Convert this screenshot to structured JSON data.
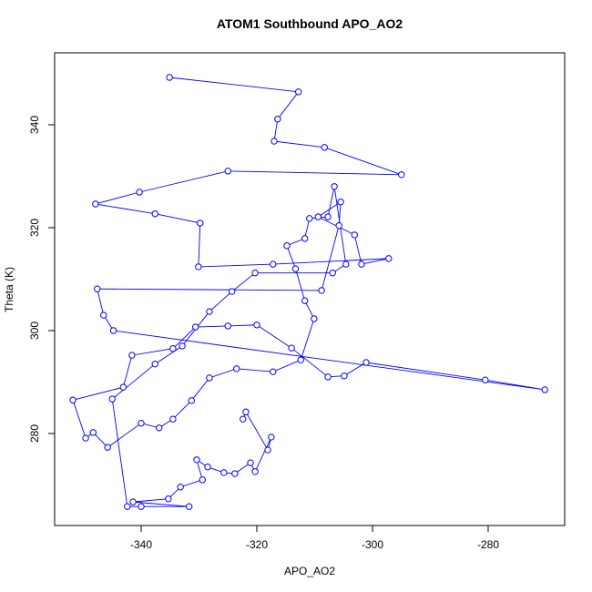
{
  "chart_data": {
    "type": "scatter-line",
    "title": "ATOM1 Southbound APO_AO2",
    "x_label": "APO_AO2",
    "y_label": "Theta (K)",
    "color": "#0000ff",
    "xlim": [
      -354.96,
      -266.77
    ],
    "ylim": [
      262.12,
      353.98
    ],
    "xticks": [
      -340,
      -320,
      -300,
      -280
    ],
    "yticks": [
      280,
      300,
      320,
      340
    ],
    "x": [
      -335.1,
      -312.8,
      -316.4,
      -317.0,
      -308.3,
      -295.0,
      -325.0,
      -340.3,
      -347.9,
      -337.6,
      -329.8,
      -330.1,
      -317.2,
      -297.2,
      -301.9,
      -303.1,
      -309.4,
      -305.5,
      -305.8,
      -308.8,
      -347.6,
      -346.5,
      -344.8,
      -270.2,
      -280.5,
      -301.1,
      -304.9,
      -307.7,
      -314.0,
      -320.0,
      -325.0,
      -330.6,
      -334.5,
      -341.6,
      -343.1,
      -351.8,
      -349.6,
      -348.3,
      -345.8,
      -340.0,
      -336.9,
      -334.5,
      -331.3,
      -328.2,
      -323.5,
      -317.2,
      -312.4,
      -310.1,
      -311.7,
      -313.3,
      -314.8,
      -311.7,
      -310.9,
      -307.7,
      -306.6,
      -304.6,
      -306.9,
      -320.3,
      -324.3,
      -328.2,
      -332.9,
      -337.6,
      -345.0,
      -342.4,
      -340.0,
      -331.7,
      -341.4,
      -335.3,
      -333.2,
      -329.4,
      -330.4,
      -328.5,
      -325.7,
      -323.8,
      -321.1,
      -320.3,
      -317.5,
      -318.1,
      -321.9,
      -322.4
    ],
    "series": [
      {
        "name": "Theta",
        "values": [
          349.2,
          346.4,
          341.1,
          336.8,
          335.6,
          330.3,
          331.0,
          326.9,
          324.6,
          322.7,
          320.9,
          312.4,
          312.9,
          314.0,
          312.9,
          318.6,
          322.1,
          325.0,
          320.4,
          307.8,
          308.1,
          303.0,
          300.0,
          288.5,
          290.4,
          293.8,
          291.2,
          291.0,
          296.6,
          301.1,
          300.9,
          300.7,
          296.5,
          295.2,
          289.0,
          286.5,
          279.1,
          280.2,
          277.3,
          282.0,
          281.1,
          282.8,
          286.4,
          290.8,
          292.6,
          292.0,
          294.3,
          302.3,
          305.8,
          312.0,
          316.5,
          317.9,
          321.8,
          322.1,
          328.0,
          312.9,
          311.2,
          311.2,
          307.6,
          303.7,
          297.0,
          293.5,
          286.7,
          265.8,
          265.8,
          265.8,
          266.7,
          267.3,
          269.6,
          271.0,
          274.9,
          273.5,
          272.4,
          272.2,
          274.3,
          272.6,
          279.3,
          276.8,
          284.2,
          282.8
        ]
      }
    ]
  }
}
